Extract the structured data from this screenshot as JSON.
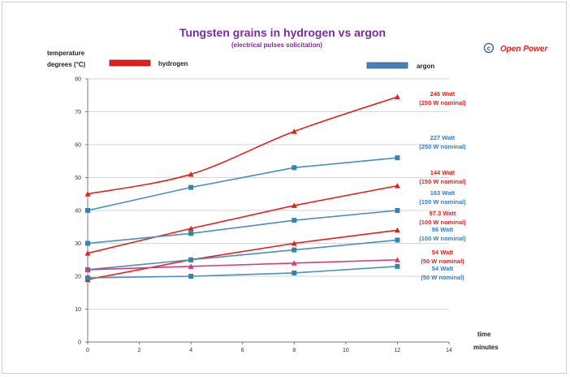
{
  "chart_data": {
    "type": "line",
    "title": "Tungsten grains in hydrogen vs argon",
    "subtitle": "(electrical pulses solicitation)",
    "ylabel_line1": "temperature",
    "ylabel_line2": "degrees  (°C)",
    "xlabel_line1": "time",
    "xlabel_line2": "minutes",
    "xlim": [
      0,
      14
    ],
    "ylim": [
      0,
      80
    ],
    "x_ticks": [
      0,
      2,
      4,
      6,
      8,
      10,
      12,
      14
    ],
    "y_ticks": [
      0,
      10,
      20,
      30,
      40,
      50,
      60,
      70,
      80
    ],
    "grid": "horizontal",
    "legend": [
      {
        "label": "hydrogen",
        "color": "#e0211f"
      },
      {
        "label": "argon",
        "color": "#4a7fb5"
      }
    ],
    "series": [
      {
        "group": "hydrogen",
        "color": "#e0211f",
        "marker": "triangle",
        "x": [
          0,
          4,
          8,
          12
        ],
        "values": [
          45,
          51,
          64,
          74.5
        ],
        "ann1": "246 Watt",
        "ann2": "(250 W nominal)",
        "smooth": true
      },
      {
        "group": "argon",
        "color": "#4a8fb8",
        "marker": "square",
        "x": [
          0,
          4,
          8,
          12
        ],
        "values": [
          40,
          47,
          53,
          56
        ],
        "ann1": "227 Watt",
        "ann2": "(250 W nominal)"
      },
      {
        "group": "hydrogen",
        "color": "#e0211f",
        "marker": "triangle",
        "x": [
          0,
          4,
          8,
          12
        ],
        "values": [
          27,
          34.5,
          41.5,
          47.5
        ],
        "ann1": "144 Watt",
        "ann2": "(150 W nominal)"
      },
      {
        "group": "argon",
        "color": "#4a8fb8",
        "marker": "square",
        "x": [
          0,
          4,
          8,
          12
        ],
        "values": [
          30,
          33,
          37,
          40
        ],
        "ann1": "163 Watt",
        "ann2": "(150 W nominal)"
      },
      {
        "group": "hydrogen",
        "color": "#e0211f",
        "marker": "triangle",
        "x": [
          0,
          4,
          8,
          12
        ],
        "values": [
          19,
          25,
          30,
          34
        ],
        "ann1": "97.3 Watt",
        "ann2": "(100 W nominal)"
      },
      {
        "group": "argon",
        "color": "#4a8fb8",
        "marker": "square",
        "x": [
          0,
          4,
          8,
          12
        ],
        "values": [
          22,
          25,
          28,
          31
        ],
        "ann1": "96 Watt",
        "ann2": "(100 W nominal)"
      },
      {
        "group": "hydrogen",
        "color": "#d63a7a",
        "marker": "triangle",
        "x": [
          0,
          4,
          8,
          12
        ],
        "values": [
          22,
          23,
          24,
          25
        ],
        "ann1": "54 Watt",
        "ann2": "(50 W nominal)"
      },
      {
        "group": "argon",
        "color": "#4a8fb8",
        "marker": "square",
        "x": [
          0,
          4,
          8,
          12
        ],
        "values": [
          19.5,
          20,
          21,
          23
        ],
        "ann1": "54 Watt",
        "ann2": "(50 W nominal)"
      }
    ]
  },
  "brand": {
    "copyright": "c",
    "name": "Open Power"
  }
}
